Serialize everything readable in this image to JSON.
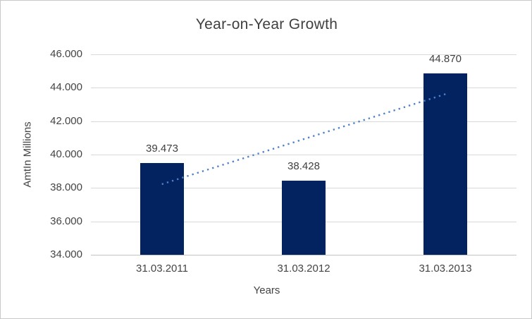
{
  "chart_data": {
    "type": "bar",
    "title": "Year-on-Year Growth",
    "xlabel": "Years",
    "ylabel": "AmtIn Millions",
    "categories": [
      "31.03.2011",
      "31.03.2012",
      "31.03.2013"
    ],
    "values": [
      39.473,
      38.428,
      44.87
    ],
    "data_labels": [
      "39.473",
      "38.428",
      "44.870"
    ],
    "ylim": [
      34,
      46
    ],
    "ytick_step": 2,
    "ytick_labels": [
      "34.000",
      "36.000",
      "38.000",
      "40.000",
      "42.000",
      "44.000",
      "46.000"
    ],
    "grid": true,
    "legend": "none",
    "trendline": {
      "type": "linear",
      "style": "dotted"
    },
    "colors": {
      "bar": "#022260",
      "trendline": "#4e81c8",
      "gridline": "#d9d9d9",
      "axis_line": "#c3c3c3",
      "title_text": "#404040",
      "label_text": "#404040",
      "tick_text": "#444444",
      "border": "#c9c9c9",
      "background": "#ffffff"
    }
  }
}
